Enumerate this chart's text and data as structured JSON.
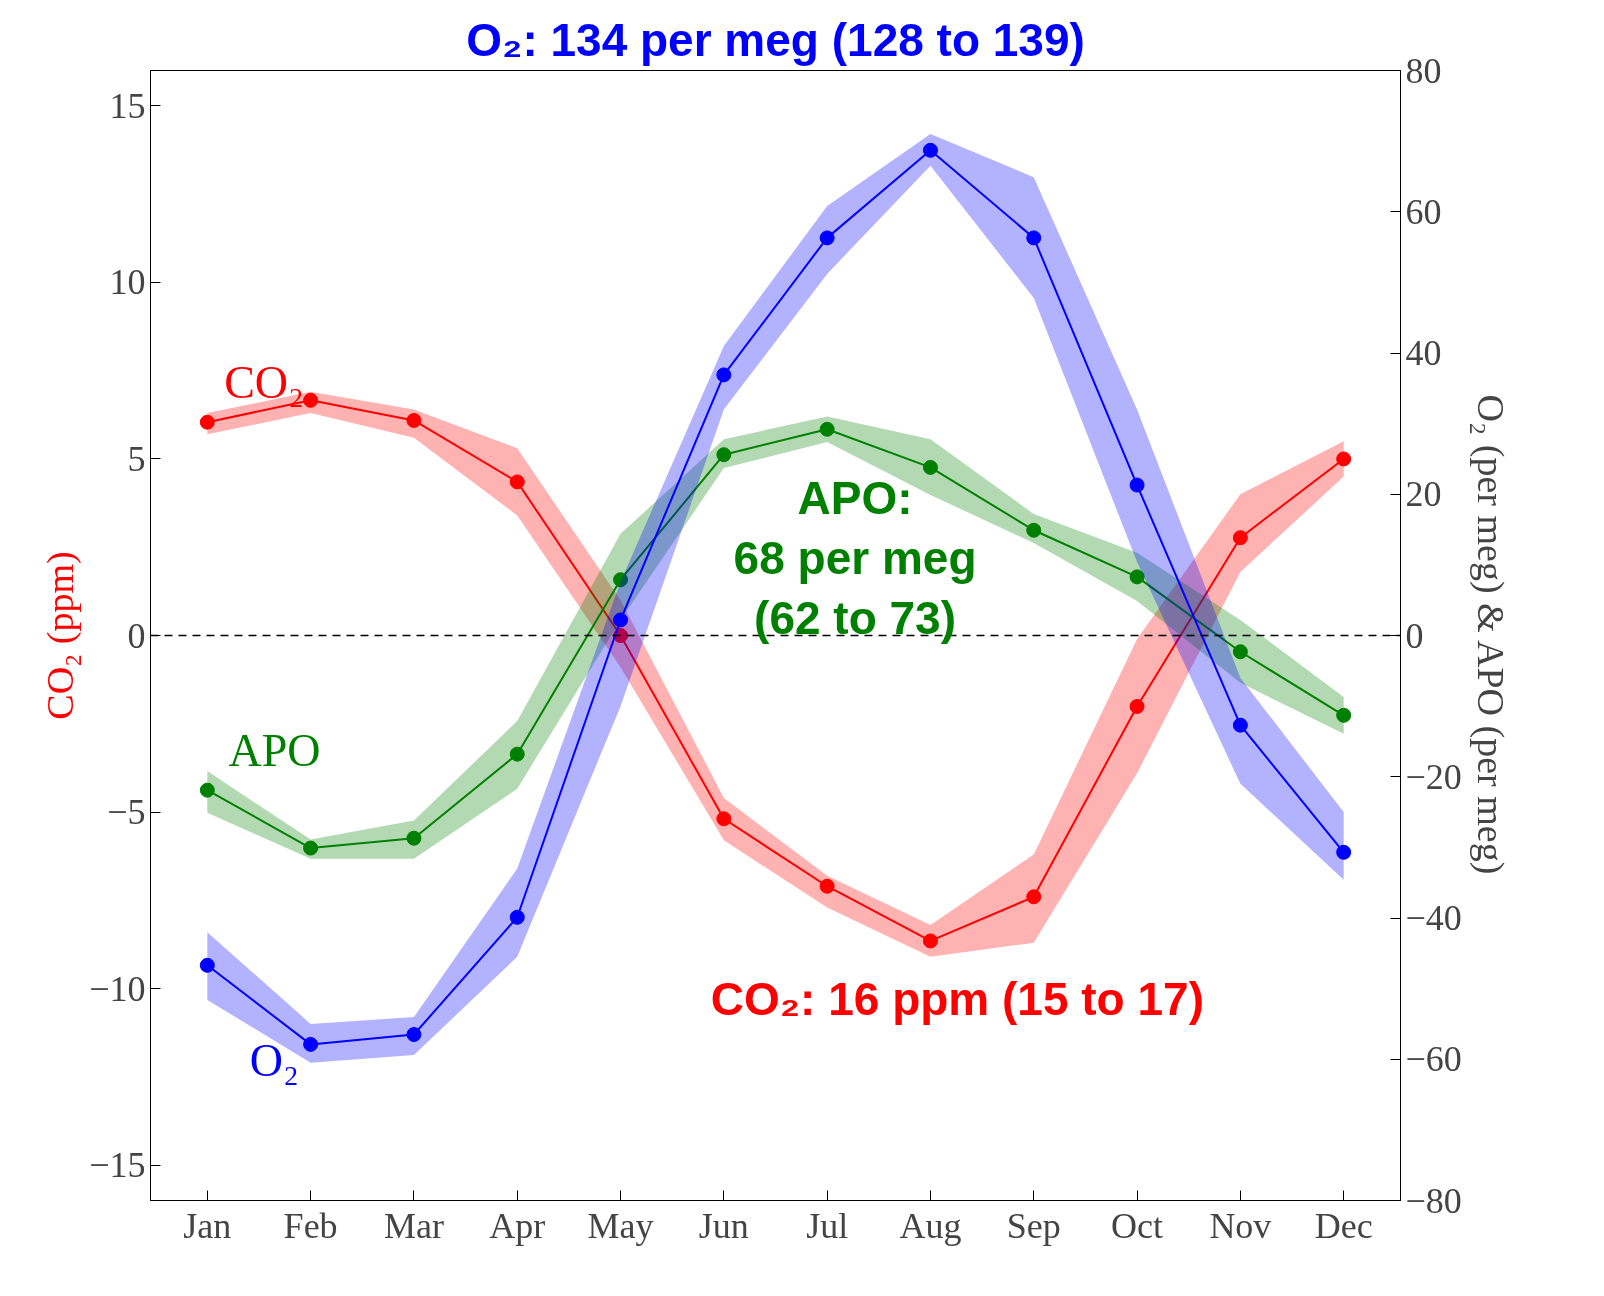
{
  "chart_data": {
    "type": "line",
    "marker": "circle",
    "grid": false,
    "ylabel": "CO₂ (ppm)",
    "y2label": "O₂ (per meg) & APO (per meg)",
    "categories": [
      "Jan",
      "Feb",
      "Mar",
      "Apr",
      "May",
      "Jun",
      "Jul",
      "Aug",
      "Sep",
      "Oct",
      "Nov",
      "Dec"
    ],
    "ylim": [
      -16,
      16
    ],
    "yticks": [
      {
        "value": -15,
        "label": "−15"
      },
      {
        "value": -10,
        "label": "−10"
      },
      {
        "value": -5,
        "label": "−5"
      },
      0,
      5,
      10,
      15
    ],
    "y2lim": [
      -80,
      80
    ],
    "y2ticks": [
      {
        "value": -80,
        "label": "−80"
      },
      {
        "value": -60,
        "label": "−60"
      },
      {
        "value": -40,
        "label": "−40"
      },
      {
        "value": -20,
        "label": "−20"
      },
      0,
      20,
      40,
      60,
      80
    ],
    "series": [
      {
        "name": "CO₂",
        "color": "#ff0000",
        "values": [
          6.04,
          6.66,
          6.09,
          4.35,
          0.0,
          -5.19,
          -7.1,
          -8.65,
          -7.4,
          -2.01,
          2.77,
          5.0
        ],
        "lower": [
          5.7,
          6.3,
          5.6,
          3.4,
          -0.9,
          -5.8,
          -7.7,
          -9.1,
          -8.7,
          -3.9,
          1.8,
          4.5
        ],
        "upper": [
          6.3,
          6.9,
          6.4,
          5.3,
          1.0,
          -4.6,
          -6.8,
          -8.2,
          -6.2,
          -0.1,
          4.0,
          5.5
        ]
      },
      {
        "name": "APO",
        "color": "#008000",
        "axis": "y2",
        "values": [
          -21.9,
          -30.1,
          -28.7,
          -16.8,
          7.9,
          25.6,
          29.2,
          23.8,
          14.9,
          8.3,
          -2.3,
          -11.3
        ],
        "lower": [
          -25.1,
          -31.6,
          -31.6,
          -21.7,
          2.2,
          23.7,
          27.4,
          19.9,
          13.1,
          4.9,
          -6.7,
          -13.9
        ],
        "upper": [
          -19.2,
          -28.9,
          -26.2,
          -12.1,
          14.4,
          27.8,
          31.0,
          27.8,
          17.2,
          11.7,
          2.2,
          -8.7
        ]
      },
      {
        "name": "O₂",
        "color": "#0000ff",
        "axis": "y2",
        "values": [
          -46.7,
          -57.9,
          -56.5,
          -39.9,
          2.2,
          36.9,
          56.3,
          68.7,
          56.3,
          21.3,
          -12.7,
          -30.7
        ],
        "lower": [
          -51.6,
          -60.5,
          -59.4,
          -45.5,
          -10.0,
          32.0,
          51.2,
          66.5,
          47.8,
          10.4,
          -21.0,
          -34.6
        ],
        "upper": [
          -42.0,
          -55.0,
          -54.0,
          -33.0,
          7.6,
          41.0,
          60.8,
          71.0,
          64.9,
          32.0,
          -6.0,
          -25.0
        ]
      }
    ],
    "ref_lines": [
      {
        "axis": "y",
        "value": 0,
        "color": "#000000",
        "line_style": "dashed"
      }
    ],
    "annotations": [
      "O₂: 134 per meg (128 to 139)",
      "APO:\n68 per meg\n(62 to 73)",
      "CO₂: 16 ppm (15 to 17)"
    ]
  }
}
